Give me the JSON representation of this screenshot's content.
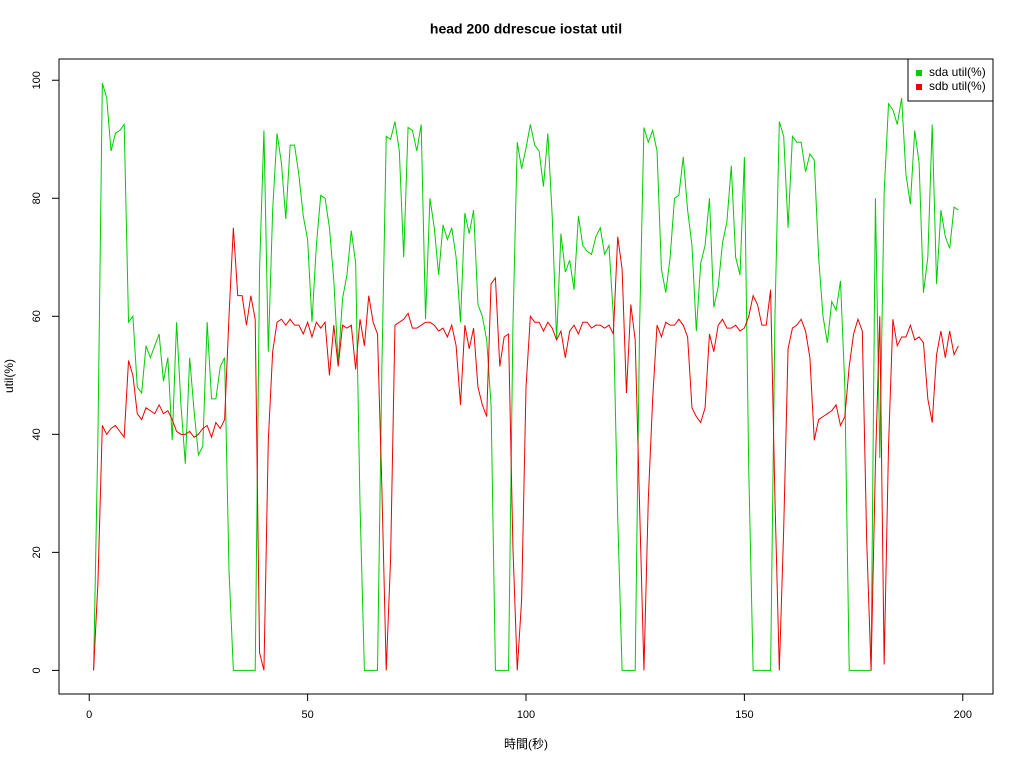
{
  "chart_data": {
    "type": "line",
    "title": "head 200 ddrescue iostat util",
    "x_label": "時間(秒)",
    "y_label": "util(%)",
    "x": [
      1,
      2,
      3,
      4,
      5,
      6,
      7,
      8,
      9,
      10,
      11,
      12,
      13,
      14,
      15,
      16,
      17,
      18,
      19,
      20,
      21,
      22,
      23,
      24,
      25,
      26,
      27,
      28,
      29,
      30,
      31,
      32,
      33,
      34,
      35,
      36,
      37,
      38,
      39,
      40,
      41,
      42,
      43,
      44,
      45,
      46,
      47,
      48,
      49,
      50,
      51,
      52,
      53,
      54,
      55,
      56,
      57,
      58,
      59,
      60,
      61,
      62,
      63,
      64,
      65,
      66,
      67,
      68,
      69,
      70,
      71,
      72,
      73,
      74,
      75,
      76,
      77,
      78,
      79,
      80,
      81,
      82,
      83,
      84,
      85,
      86,
      87,
      88,
      89,
      90,
      91,
      92,
      93,
      94,
      95,
      96,
      97,
      98,
      99,
      100,
      101,
      102,
      103,
      104,
      105,
      106,
      107,
      108,
      109,
      110,
      111,
      112,
      113,
      114,
      115,
      116,
      117,
      118,
      119,
      120,
      121,
      122,
      123,
      124,
      125,
      126,
      127,
      128,
      129,
      130,
      131,
      132,
      133,
      134,
      135,
      136,
      137,
      138,
      139,
      140,
      141,
      142,
      143,
      144,
      145,
      146,
      147,
      148,
      149,
      150,
      151,
      152,
      153,
      154,
      155,
      156,
      157,
      158,
      159,
      160,
      161,
      162,
      163,
      164,
      165,
      166,
      167,
      168,
      169,
      170,
      171,
      172,
      173,
      174,
      175,
      176,
      177,
      178,
      179,
      180,
      181,
      182,
      183,
      184,
      185,
      186,
      187,
      188,
      189,
      190,
      191,
      192,
      193,
      194,
      195,
      196,
      197,
      198,
      199
    ],
    "series": [
      {
        "name": "sda util(%)",
        "color": "#00cd00",
        "values": [
          0,
          40,
          99.5,
          97,
          88,
          91,
          91.5,
          92.5,
          59,
          60,
          48,
          47,
          55,
          53,
          55,
          57,
          49,
          53,
          39,
          59,
          45,
          35,
          53,
          44,
          36.5,
          38,
          59,
          46,
          46,
          51.5,
          53,
          17,
          0,
          0,
          0,
          0,
          0,
          0,
          68,
          91.5,
          54,
          78,
          91,
          86,
          76.5,
          89,
          89,
          84,
          77,
          73,
          59,
          72,
          80.5,
          80,
          75,
          66,
          52,
          63,
          67,
          74.5,
          69,
          28,
          0,
          0,
          0,
          0,
          51,
          90.5,
          90,
          93,
          88,
          70,
          92,
          91.5,
          88,
          92.5,
          59.5,
          80,
          75,
          67,
          75.5,
          73,
          75,
          70,
          59,
          77.5,
          74,
          78,
          62,
          60,
          56,
          45,
          0,
          0,
          0,
          0,
          58,
          89.5,
          85,
          88.5,
          92.5,
          89,
          88,
          82,
          91,
          77,
          56,
          74,
          67.5,
          69.5,
          64.5,
          77,
          72,
          71,
          70.5,
          73.5,
          75,
          70.5,
          72,
          60,
          26,
          0,
          0,
          0,
          0,
          58,
          92,
          89.5,
          91.5,
          88,
          68,
          64,
          70,
          80,
          80.5,
          87,
          78,
          72,
          57.5,
          69,
          72,
          80,
          61.5,
          65,
          72.5,
          76,
          85.5,
          70,
          67,
          87,
          34,
          0,
          0,
          0,
          0,
          0,
          60,
          93,
          90.5,
          75,
          90.5,
          89.5,
          89.5,
          84.5,
          87.5,
          86.5,
          70,
          60,
          55.5,
          62.5,
          61,
          66,
          48,
          0,
          0,
          0,
          0,
          0,
          0,
          80,
          36,
          81,
          96,
          95,
          92.5,
          97,
          84,
          79,
          91.5,
          86,
          64,
          70,
          92.5,
          65.5,
          78,
          73.5,
          71.5,
          78.5,
          78
        ]
      },
      {
        "name": "sdb util(%)",
        "color": "#ee0000",
        "values": [
          0,
          15,
          41.5,
          40,
          41,
          41.5,
          40.5,
          39.5,
          52.5,
          50,
          43.5,
          42.5,
          44.5,
          44,
          43.5,
          45,
          43.5,
          44,
          42.5,
          40.5,
          40,
          40,
          40.5,
          39.5,
          40,
          41,
          41.5,
          39.5,
          42,
          41,
          42.5,
          60,
          75,
          63.5,
          63.5,
          58.5,
          63.5,
          59.5,
          3,
          0,
          39,
          54,
          59,
          59.5,
          58.5,
          59.5,
          58.5,
          58.5,
          57,
          59,
          56.5,
          59,
          58,
          59,
          50,
          58.5,
          51.5,
          58.5,
          58,
          58.5,
          51,
          59.5,
          55,
          63.5,
          59,
          57,
          31,
          0,
          19,
          58.5,
          59,
          59.5,
          60.5,
          58,
          58,
          58.5,
          59,
          59,
          58.5,
          57.5,
          58,
          56.5,
          58.5,
          55,
          45,
          58.5,
          54.5,
          58,
          48,
          45,
          43,
          65.5,
          66.5,
          51.5,
          56.5,
          57,
          21,
          0,
          12,
          48,
          60,
          59,
          59,
          57.5,
          59,
          58,
          56,
          57.5,
          53,
          57.5,
          58.5,
          57,
          59,
          59,
          58,
          58.5,
          58.5,
          58,
          58.5,
          57,
          73.5,
          68,
          47,
          62,
          56,
          28,
          0,
          29,
          46,
          58.5,
          56.5,
          59,
          58.5,
          58.5,
          59.5,
          58.5,
          56.5,
          44.5,
          43,
          42,
          44.5,
          57,
          54,
          58.5,
          59.5,
          58,
          58,
          58.5,
          57.5,
          58,
          60,
          63.5,
          62,
          58.5,
          58.5,
          64.5,
          29,
          0,
          24,
          54.5,
          58,
          58.5,
          59.5,
          57.5,
          53,
          39,
          42.5,
          43,
          43.5,
          44,
          45,
          41.5,
          43,
          51.5,
          57,
          59.5,
          57.5,
          22,
          0,
          35,
          60,
          1,
          38,
          59.5,
          55,
          56.5,
          56.5,
          58.5,
          56,
          56.5,
          55.5,
          46,
          42,
          53.5,
          57.5,
          53,
          57.5,
          53.5,
          55
        ]
      }
    ],
    "xlim": [
      -6.92,
      206.92
    ],
    "ylim": [
      -4,
      103.6
    ],
    "xticks": [
      0,
      50,
      100,
      150,
      200
    ],
    "yticks": [
      0,
      20,
      40,
      60,
      80,
      100
    ],
    "legend": "top-right"
  }
}
